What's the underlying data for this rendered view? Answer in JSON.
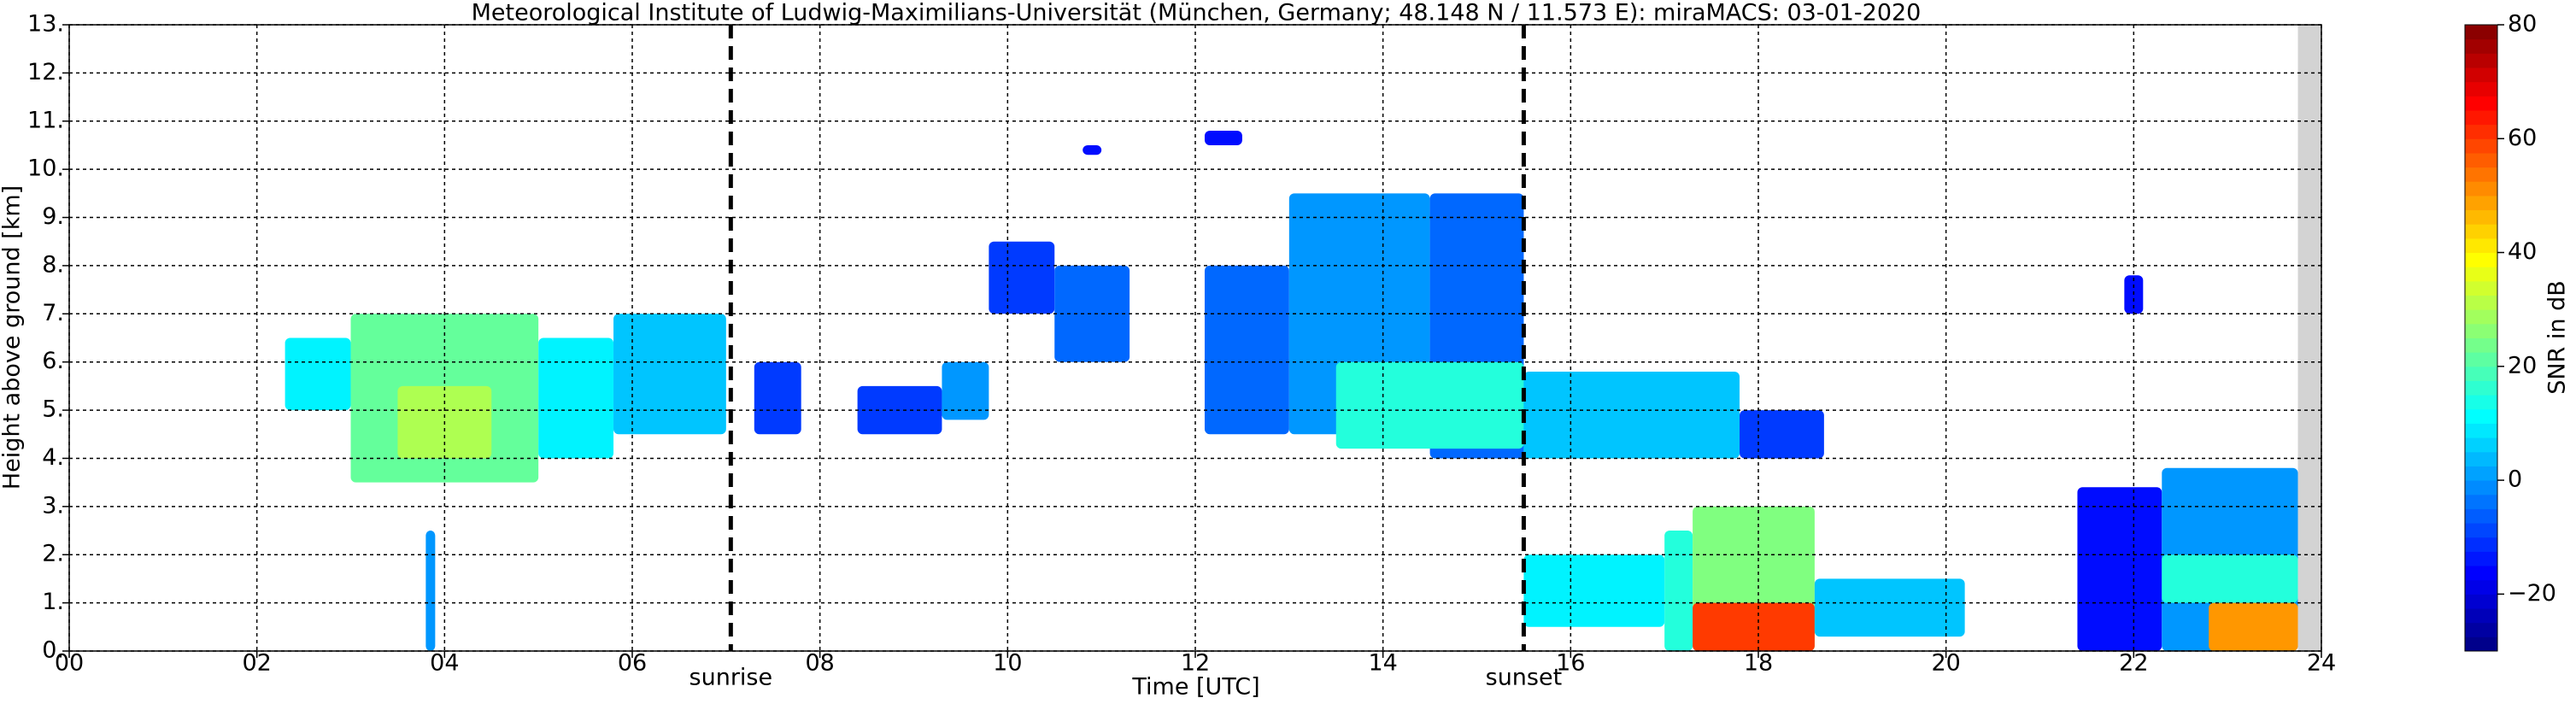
{
  "chart_data": {
    "type": "radar",
    "title": "Meteorological Institute of Ludwig-Maximilians-Universität (München, Germany; 48.148 N / 11.573 E):    miraMACS: 03-01-2020",
    "x_label": "Time [UTC]",
    "y_label": "Height above ground [km]",
    "colorbar_label": "SNR in dB",
    "xlim": [
      0,
      24
    ],
    "xticks": [
      {
        "value": 0,
        "label": "00"
      },
      {
        "value": 2,
        "label": "02"
      },
      {
        "value": 4,
        "label": "04"
      },
      {
        "value": 6,
        "label": "06"
      },
      {
        "value": 8,
        "label": "08"
      },
      10,
      12,
      14,
      16,
      18,
      20,
      22,
      24
    ],
    "ylim": [
      0,
      13
    ],
    "yticks": [
      {
        "value": 0,
        "label": "0."
      },
      {
        "value": 1,
        "label": "1."
      },
      {
        "value": 2,
        "label": "2."
      },
      {
        "value": 3,
        "label": "3."
      },
      {
        "value": 4,
        "label": "4."
      },
      {
        "value": 5,
        "label": "5."
      },
      {
        "value": 6,
        "label": "6."
      },
      {
        "value": 7,
        "label": "7."
      },
      {
        "value": 8,
        "label": "8."
      },
      {
        "value": 9,
        "label": "9."
      },
      {
        "value": 10,
        "label": "10."
      },
      {
        "value": 11,
        "label": "11."
      },
      {
        "value": 12,
        "label": "12."
      },
      {
        "value": 13,
        "label": "13."
      }
    ],
    "clim": [
      -30,
      80
    ],
    "cticks": [
      {
        "value": -20,
        "label": "−20"
      },
      0,
      20,
      40,
      60,
      80
    ],
    "grid": true,
    "colormap": "jet",
    "missing_after": 23.75,
    "annotations": [
      {
        "x": 7.05,
        "label": "sunrise"
      },
      {
        "x": 15.5,
        "label": "sunset"
      }
    ],
    "cells": [
      {
        "x0": 2.3,
        "x1": 3.0,
        "y0": 5,
        "y1": 6.5,
        "value": 10
      },
      {
        "x0": 3.0,
        "x1": 5.0,
        "y0": 3.5,
        "y1": 7.0,
        "value": 22
      },
      {
        "x0": 3.5,
        "x1": 4.5,
        "y0": 4,
        "y1": 5.5,
        "value": 30
      },
      {
        "x0": 5.0,
        "x1": 5.8,
        "y0": 4,
        "y1": 6.5,
        "value": 10
      },
      {
        "x0": 5.8,
        "x1": 7.0,
        "y0": 4.5,
        "y1": 7,
        "value": 5
      },
      {
        "x0": 7.3,
        "x1": 7.8,
        "y0": 4.5,
        "y1": 6,
        "value": -10
      },
      {
        "x0": 8.4,
        "x1": 9.3,
        "y0": 4.5,
        "y1": 5.5,
        "value": -10
      },
      {
        "x0": 9.3,
        "x1": 9.8,
        "y0": 4.8,
        "y1": 6,
        "value": 0
      },
      {
        "x0": 9.8,
        "x1": 10.5,
        "y0": 7,
        "y1": 8.5,
        "value": -10
      },
      {
        "x0": 10.5,
        "x1": 11.3,
        "y0": 6,
        "y1": 8,
        "value": -5
      },
      {
        "x0": 12.1,
        "x1": 13,
        "y0": 4.5,
        "y1": 8,
        "value": -5
      },
      {
        "x0": 13,
        "x1": 14.5,
        "y0": 4.5,
        "y1": 9.5,
        "value": 0
      },
      {
        "x0": 14.5,
        "x1": 15.5,
        "y0": 4,
        "y1": 9.5,
        "value": -5
      },
      {
        "x0": 13.5,
        "x1": 15.5,
        "y0": 4.2,
        "y1": 6,
        "value": 15
      },
      {
        "x0": 15.5,
        "x1": 17.8,
        "y0": 4,
        "y1": 5.8,
        "value": 5
      },
      {
        "x0": 17.8,
        "x1": 18.7,
        "y0": 4,
        "y1": 5,
        "value": -10
      },
      {
        "x0": 15.5,
        "x1": 17,
        "y0": 0.5,
        "y1": 2,
        "value": 10
      },
      {
        "x0": 17,
        "x1": 17.3,
        "y0": 0,
        "y1": 2.5,
        "value": 15
      },
      {
        "x0": 17.3,
        "x1": 18.6,
        "y0": 0,
        "y1": 3,
        "value": 25
      },
      {
        "x0": 17.3,
        "x1": 18.6,
        "y0": 0,
        "y1": 1,
        "value": 60
      },
      {
        "x0": 18.6,
        "x1": 20.2,
        "y0": 0.3,
        "y1": 1.5,
        "value": 5
      },
      {
        "x0": 21.4,
        "x1": 22.3,
        "y0": 0,
        "y1": 3.4,
        "value": -15
      },
      {
        "x0": 22.3,
        "x1": 23.75,
        "y0": 0,
        "y1": 3.8,
        "value": 0
      },
      {
        "x0": 22.3,
        "x1": 23.75,
        "y0": 1,
        "y1": 2,
        "value": 15
      },
      {
        "x0": 22.8,
        "x1": 23.75,
        "y0": 0,
        "y1": 1,
        "value": 50
      },
      {
        "x0": 21.9,
        "x1": 22.1,
        "y0": 7,
        "y1": 7.8,
        "value": -15
      },
      {
        "x0": 10.8,
        "x1": 11.0,
        "y0": 10.3,
        "y1": 10.5,
        "value": -15
      },
      {
        "x0": 12.1,
        "x1": 12.5,
        "y0": 10.5,
        "y1": 10.8,
        "value": -15
      },
      {
        "x0": 3.8,
        "x1": 3.9,
        "y0": 0,
        "y1": 2.5,
        "value": 0
      }
    ]
  }
}
